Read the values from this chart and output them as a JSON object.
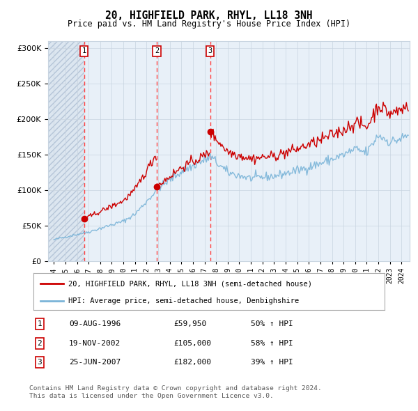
{
  "title": "20, HIGHFIELD PARK, RHYL, LL18 3NH",
  "subtitle": "Price paid vs. HM Land Registry's House Price Index (HPI)",
  "legend_line1": "20, HIGHFIELD PARK, RHYL, LL18 3NH (semi-detached house)",
  "legend_line2": "HPI: Average price, semi-detached house, Denbighshire",
  "footer1": "Contains HM Land Registry data © Crown copyright and database right 2024.",
  "footer2": "This data is licensed under the Open Government Licence v3.0.",
  "sales": [
    {
      "num": 1,
      "date_dec": 1996.6,
      "price": 59950,
      "label": "09-AUG-1996",
      "amount": "£59,950",
      "pct": "50% ↑ HPI"
    },
    {
      "num": 2,
      "date_dec": 2002.89,
      "price": 105000,
      "label": "19-NOV-2002",
      "amount": "£105,000",
      "pct": "58% ↑ HPI"
    },
    {
      "num": 3,
      "date_dec": 2007.48,
      "price": 182000,
      "label": "25-JUN-2007",
      "amount": "£182,000",
      "pct": "39% ↑ HPI"
    }
  ],
  "hpi_color": "#7ab4d8",
  "price_color": "#cc0000",
  "vline_color": "#ff4444",
  "grid_color": "#c8d4e0",
  "background_color": "#ffffff",
  "plot_bg_color": "#e8f0f8",
  "ylim": [
    0,
    310000
  ],
  "yticks": [
    0,
    50000,
    100000,
    150000,
    200000,
    250000,
    300000
  ],
  "xlim_start": 1993.5,
  "xlim_end": 2024.7,
  "xticks": [
    1994,
    1995,
    1996,
    1997,
    1998,
    1999,
    2000,
    2001,
    2002,
    2003,
    2004,
    2005,
    2006,
    2007,
    2008,
    2009,
    2010,
    2011,
    2012,
    2013,
    2014,
    2015,
    2016,
    2017,
    2018,
    2019,
    2020,
    2021,
    2022,
    2023,
    2024
  ]
}
